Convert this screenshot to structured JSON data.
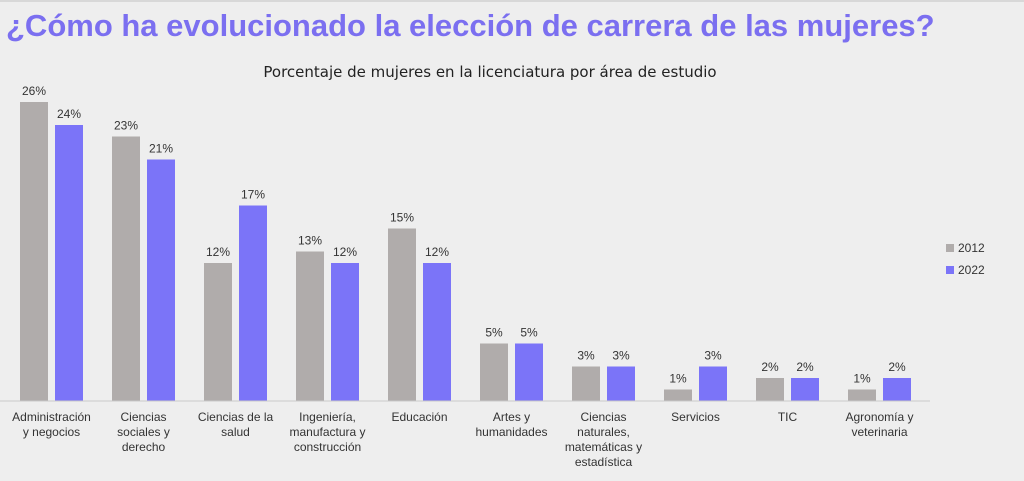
{
  "header": {
    "title": "¿Cómo ha evolucionado la elección de carrera de las mujeres?"
  },
  "colors": {
    "title": "#7b6ff0",
    "series_2012": "#b0acab",
    "series_2022": "#7b74f8"
  },
  "chart_data": {
    "type": "bar",
    "title": "Porcentaje de mujeres en la licenciatura por área de estudio",
    "xlabel": "",
    "ylabel": "",
    "ylim": [
      0,
      26
    ],
    "grid": false,
    "legend_position": "right",
    "categories": [
      [
        "Administración",
        "y negocios"
      ],
      [
        "Ciencias",
        "sociales y",
        "derecho"
      ],
      [
        "Ciencias de la",
        "salud"
      ],
      [
        "Ingeniería,",
        "manufactura y",
        "construcción"
      ],
      [
        "Educación"
      ],
      [
        "Artes y",
        "humanidades"
      ],
      [
        "Ciencias",
        "naturales,",
        "matemáticas y",
        "estadística"
      ],
      [
        "Servicios"
      ],
      [
        "TIC"
      ],
      [
        "Agronomía y",
        "veterinaria"
      ]
    ],
    "series": [
      {
        "name": "2012",
        "color": "#b0acab",
        "values": [
          26,
          23,
          12,
          13,
          15,
          5,
          3,
          1,
          2,
          1
        ],
        "labels": [
          "26%",
          "23%",
          "12%",
          "13%",
          "15%",
          "5%",
          "3%",
          "1%",
          "2%",
          "1%"
        ]
      },
      {
        "name": "2022",
        "color": "#7b74f8",
        "values": [
          24,
          21,
          17,
          12,
          12,
          5,
          3,
          3,
          2,
          2
        ],
        "labels": [
          "24%",
          "21%",
          "17%",
          "12%",
          "12%",
          "5%",
          "3%",
          "3%",
          "2%",
          "2%"
        ]
      }
    ]
  }
}
